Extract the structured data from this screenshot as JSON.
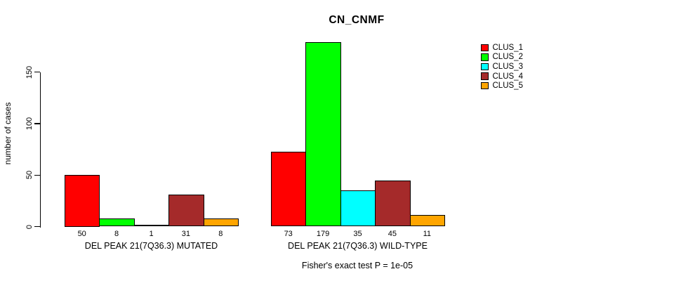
{
  "chart_data": {
    "type": "bar",
    "title": "CN_CNMF",
    "ylabel": "number of cases",
    "xlabel": "",
    "yticks": [
      0,
      50,
      100,
      150
    ],
    "ylim": [
      0,
      185
    ],
    "grid": false,
    "legend_position": "right-outside",
    "bar_value_labels": true,
    "series": [
      {
        "name": "CLUS_1",
        "color": "#FF0000"
      },
      {
        "name": "CLUS_2",
        "color": "#00FF00"
      },
      {
        "name": "CLUS_3",
        "color": "#00FFFF"
      },
      {
        "name": "CLUS_4",
        "color": "#A52A2A"
      },
      {
        "name": "CLUS_5",
        "color": "#FFA500"
      }
    ],
    "groups": [
      {
        "label": "DEL PEAK 21(7Q36.3) MUTATED",
        "values": [
          50,
          8,
          1,
          31,
          8
        ]
      },
      {
        "label": "DEL PEAK 21(7Q36.3) WILD-TYPE",
        "values": [
          73,
          179,
          35,
          45,
          11
        ]
      }
    ],
    "footnote": "Fisher's exact test P = 1e-05",
    "axis_color": "#000000",
    "background_color": "#FFFFFF"
  }
}
